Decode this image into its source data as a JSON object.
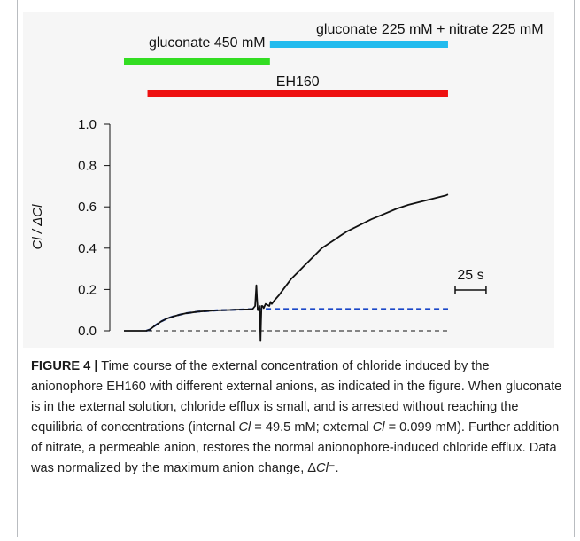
{
  "figure": {
    "label": "FIGURE 4 |",
    "caption_parts": [
      {
        "text": " Time course of the external concentration of chloride induced by the anionophore EH160 with different external anions, as indicated in the figure. When gluconate is in the external solution, chloride efflux is small, and is arrested without reaching the equilibria of concentrations (internal ",
        "italic": false
      },
      {
        "text": "Cl",
        "italic": true
      },
      {
        "text": " = 49.5 mM; external ",
        "italic": false
      },
      {
        "text": "Cl",
        "italic": true
      },
      {
        "text": " = 0.099 mM). Further addition of nitrate, a permeable anion, restores the normal anionophore-induced chloride efflux. Data was normalized by the maximum anion change, Δ",
        "italic": false
      },
      {
        "text": "Cl",
        "italic": true
      },
      {
        "text": "⁻.",
        "italic": false
      }
    ]
  },
  "chart_data": {
    "type": "line",
    "ylabel": "Cl / ΔCl",
    "xlabel": "",
    "ylim": [
      -0.05,
      1.03
    ],
    "xlim": [
      0,
      315
    ],
    "yticks": [
      0.0,
      0.2,
      0.4,
      0.6,
      0.8,
      1.0
    ],
    "ytick_labels": [
      "0.0",
      "0.2",
      "0.4",
      "0.6",
      "0.8",
      "1.0"
    ],
    "scale_bar": {
      "label": "25 s",
      "duration_s": 25
    },
    "treatment_bars": [
      {
        "label": "gluconate 450 mM",
        "color": "#33dd22",
        "start_s": 0,
        "end_s": 118
      },
      {
        "label": "gluconate 225 mM + nitrate 225 mM",
        "color": "#22bbee",
        "start_s": 118,
        "end_s": 262
      },
      {
        "label": "EH160",
        "color": "#ee1111",
        "start_s": 19,
        "end_s": 262
      }
    ],
    "series": [
      {
        "style": "solid",
        "color": "#111111",
        "x": [
          0,
          9,
          18,
          21,
          25,
          30,
          35,
          40,
          45,
          50,
          55,
          60,
          65,
          70,
          75,
          80,
          85,
          90,
          95,
          100,
          104,
          106,
          107,
          107.5,
          108.2,
          109,
          109.5,
          110,
          110.4,
          110.8,
          111.2,
          112,
          113,
          114.5,
          116,
          117.5,
          118.5,
          119.5,
          122,
          125,
          130,
          135,
          140,
          145,
          150,
          155,
          160,
          165,
          170,
          175,
          180,
          190,
          200,
          210,
          220,
          230,
          240,
          250,
          260,
          262
        ],
        "y": [
          0.0,
          0.0,
          0.0,
          0.006,
          0.025,
          0.045,
          0.06,
          0.07,
          0.078,
          0.085,
          0.089,
          0.093,
          0.095,
          0.097,
          0.099,
          0.1,
          0.101,
          0.102,
          0.103,
          0.104,
          0.105,
          0.12,
          0.22,
          0.16,
          0.1,
          0.1,
          0.12,
          0.05,
          -0.05,
          0.05,
          0.12,
          0.12,
          0.11,
          0.13,
          0.125,
          0.12,
          0.14,
          0.13,
          0.15,
          0.17,
          0.21,
          0.25,
          0.28,
          0.31,
          0.34,
          0.37,
          0.4,
          0.42,
          0.44,
          0.46,
          0.48,
          0.51,
          0.54,
          0.565,
          0.59,
          0.61,
          0.625,
          0.64,
          0.655,
          0.66
        ]
      },
      {
        "style": "dashed",
        "color": "#1a47c8",
        "x": [
          18,
          21,
          25,
          30,
          35,
          40,
          45,
          50,
          55,
          60,
          65,
          70,
          75,
          80,
          85,
          90,
          95,
          100,
          105,
          262
        ],
        "y": [
          0.0,
          0.006,
          0.025,
          0.045,
          0.06,
          0.07,
          0.078,
          0.085,
          0.089,
          0.093,
          0.095,
          0.097,
          0.099,
          0.1,
          0.101,
          0.102,
          0.103,
          0.104,
          0.105,
          0.105
        ]
      },
      {
        "style": "dashed",
        "color": "#111111",
        "x": [
          0,
          262
        ],
        "y": [
          0.0,
          0.0
        ]
      }
    ]
  }
}
